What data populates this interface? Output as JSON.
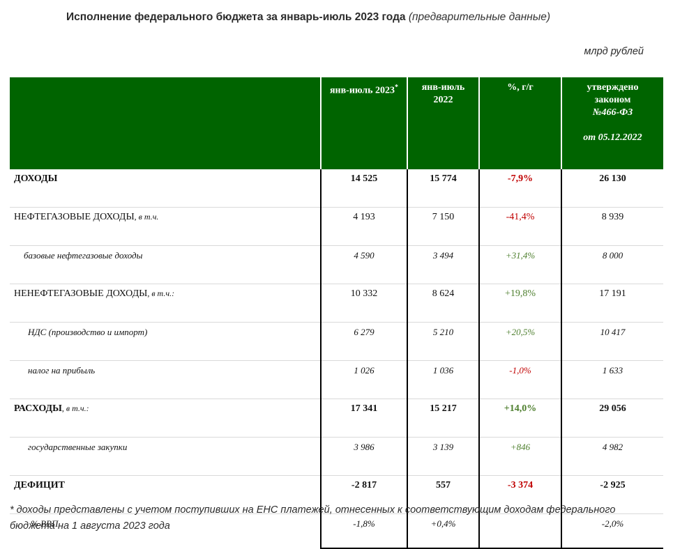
{
  "title": {
    "main": "Исполнение федерального бюджета за январь-июль 2023 года",
    "prelim": "(предварительные данные)"
  },
  "units": "млрд рублей",
  "header": {
    "col1": "янв-июль 2023",
    "col1_mark": "*",
    "col2_line1": "янв-июль",
    "col2_line2": "2022",
    "col3": "%, г/г",
    "col4_line1": "утверждено",
    "col4_line2": "законом",
    "col4_line3": "№466-ФЗ",
    "col4_line4": "от 05.12.2022"
  },
  "rows": [
    {
      "label": "ДОХОДЫ",
      "qual": "",
      "v2023": "14 525",
      "v2022": "15 774",
      "pct": "-7,9%",
      "law": "26 130"
    },
    {
      "label": "НЕФТЕГАЗОВЫЕ ДОХОДЫ",
      "qual": ", в т.ч.",
      "v2023": "4 193",
      "v2022": "7 150",
      "pct": "-41,4%",
      "law": "8 939"
    },
    {
      "label": "базовые нефтегазовые доходы",
      "qual": "",
      "v2023": "4 590",
      "v2022": "3 494",
      "pct": "+31,4%",
      "law": "8 000"
    },
    {
      "label": "НЕНЕФТЕГАЗОВЫЕ ДОХОДЫ",
      "qual": ", в т.ч.:",
      "v2023": "10 332",
      "v2022": "8 624",
      "pct": "+19,8%",
      "law": "17 191"
    },
    {
      "label": "НДС (производство и импорт)",
      "qual": "",
      "v2023": "6 279",
      "v2022": "5 210",
      "pct": "+20,5%",
      "law": "10 417"
    },
    {
      "label": "налог на прибыль",
      "qual": "",
      "v2023": "1 026",
      "v2022": "1 036",
      "pct": "-1,0%",
      "law": "1 633"
    },
    {
      "label": "РАСХОДЫ",
      "qual": ", в т.ч.:",
      "v2023": "17 341",
      "v2022": "15 217",
      "pct": "+14,0%",
      "law": "29 056"
    },
    {
      "label": "государственные закупки",
      "qual": "",
      "v2023": "3 986",
      "v2022": "3 139",
      "pct": "+846",
      "law": "4 982"
    },
    {
      "label": "ДЕФИЦИТ",
      "qual": "",
      "v2023": "-2 817",
      "v2022": "557",
      "pct": "-3 374",
      "law": "-2 925"
    },
    {
      "label": "% ВВП",
      "qual": "",
      "v2023": "-1,8%",
      "v2022": "+0,4%",
      "pct": "",
      "law": "-2,0%"
    }
  ],
  "colors": {
    "header_bg": "#006400",
    "negative": "#c00000",
    "positive": "#4e7f2e"
  },
  "footnote": "* доходы представлены с учетом поступивших на ЕНС платежей, отнесенных к соответствующим доходам федерального бюджета на 1 августа 2023 года"
}
